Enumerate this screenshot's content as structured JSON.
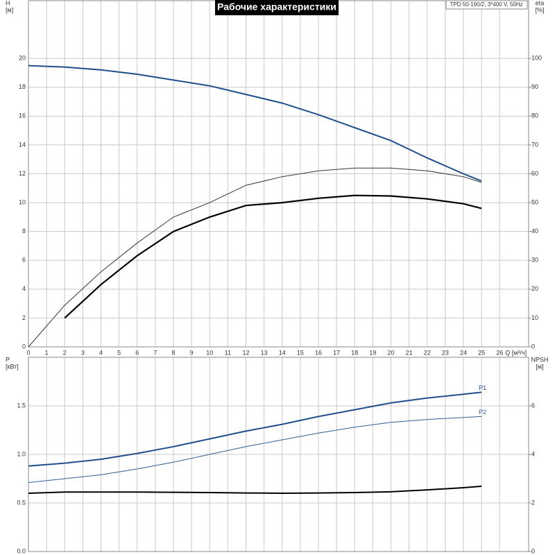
{
  "chart_data": [
    {
      "type": "line",
      "title": "Рабочие характеристики",
      "subtitle": "TPD 50-190/2, 3*400 V, 50Hz",
      "xlabel": "Q [м³/ч]",
      "ylabel": [
        "H",
        "[м]"
      ],
      "y2label": [
        "eta",
        "[%]"
      ],
      "x": [
        0,
        2,
        4,
        6,
        8,
        10,
        12,
        14,
        16,
        18,
        20,
        22,
        24,
        25
      ],
      "xlim": [
        0,
        27.6
      ],
      "xticks": [
        0,
        1,
        2,
        3,
        4,
        5,
        6,
        7,
        8,
        9,
        10,
        11,
        12,
        13,
        14,
        15,
        16,
        17,
        18,
        19,
        20,
        21,
        22,
        23,
        24,
        25,
        26
      ],
      "ylim": [
        0,
        24
      ],
      "yticks": [
        0,
        2,
        4,
        6,
        8,
        10,
        12,
        14,
        16,
        18,
        20
      ],
      "y2lim": [
        0,
        120
      ],
      "y2ticks": [
        0,
        10,
        20,
        30,
        40,
        50,
        60,
        70,
        80,
        90,
        100
      ],
      "grid": true,
      "series": [
        {
          "color": "#1f4e8c",
          "width": 2,
          "values": [
            19.5,
            19.4,
            19.2,
            18.9,
            18.5,
            18.1,
            17.5,
            16.9,
            16.1,
            15.2,
            14.3,
            13.1,
            12.0,
            11.5
          ]
        },
        {
          "color": "#333333",
          "width": 1,
          "axis": "y2",
          "values": [
            0,
            14.4,
            26,
            36,
            45,
            50,
            56,
            59,
            61,
            62,
            62,
            61,
            59,
            57
          ]
        },
        {
          "color": "#000000",
          "width": 2.2,
          "axis": "y2",
          "values": [
            null,
            10,
            21.6,
            31.6,
            40,
            45,
            49,
            50,
            51.5,
            52.5,
            52.3,
            51.3,
            49.6,
            48
          ]
        }
      ]
    },
    {
      "type": "line",
      "ylabel": [
        "P",
        "[кВт]"
      ],
      "y2label": [
        "NPSH",
        "[м]"
      ],
      "x": [
        0,
        2,
        4,
        6,
        8,
        10,
        12,
        14,
        16,
        18,
        20,
        22,
        24,
        25
      ],
      "xlim": [
        0,
        27.6
      ],
      "ylim": [
        0,
        2
      ],
      "yticks": [
        {
          "value": 0,
          "label": "0.0"
        },
        0.5,
        {
          "value": 1,
          "label": "1.0"
        },
        1.5
      ],
      "y2lim": [
        0,
        8
      ],
      "y2ticks": [
        0,
        2,
        4,
        6
      ],
      "grid": true,
      "series": [
        {
          "name": "P1",
          "color": "#1f4e8c",
          "width": 2,
          "values": [
            0.88,
            0.91,
            0.95,
            1.01,
            1.08,
            1.16,
            1.24,
            1.31,
            1.39,
            1.46,
            1.53,
            1.58,
            1.62,
            1.64
          ]
        },
        {
          "name": "P2",
          "color": "#2f5f96",
          "width": 1,
          "values": [
            0.71,
            0.75,
            0.79,
            0.85,
            0.92,
            1.0,
            1.08,
            1.15,
            1.22,
            1.28,
            1.33,
            1.36,
            1.38,
            1.39
          ]
        },
        {
          "color": "#000000",
          "width": 2,
          "axis": "y2",
          "values": [
            2.4,
            2.45,
            2.45,
            2.45,
            2.44,
            2.43,
            2.41,
            2.4,
            2.41,
            2.43,
            2.46,
            2.54,
            2.63,
            2.69
          ]
        }
      ]
    }
  ]
}
